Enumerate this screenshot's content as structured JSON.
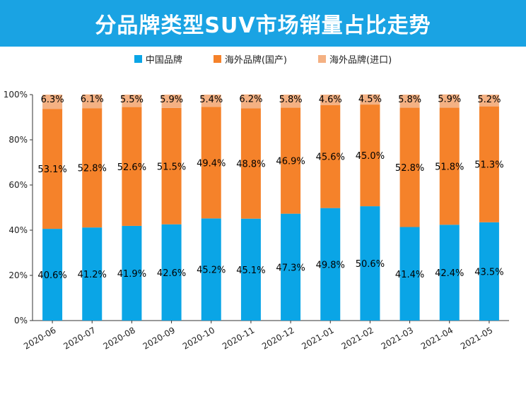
{
  "title": "分品牌类型SUV市场销量占比走势",
  "chart_data": {
    "type": "bar",
    "stacked": true,
    "categories": [
      "2020-06",
      "2020-07",
      "2020-08",
      "2020-09",
      "2020-10",
      "2020-11",
      "2020-12",
      "2021-01",
      "2021-02",
      "2021-03",
      "2021-04",
      "2021-05"
    ],
    "series": [
      {
        "name": "中国品牌",
        "color": "#0aa5e6",
        "values": [
          40.6,
          41.2,
          41.9,
          42.6,
          45.2,
          45.1,
          47.3,
          49.8,
          50.6,
          41.4,
          42.4,
          43.5
        ],
        "labels": [
          "40.6%",
          "41.2%",
          "41.9%",
          "42.6%",
          "45.2%",
          "45.1%",
          "47.3%",
          "49.8%",
          "50.6%",
          "41.4%",
          "42.4%",
          "43.5%"
        ]
      },
      {
        "name": "海外品牌(国产)",
        "color": "#f5822a",
        "values": [
          53.1,
          52.8,
          52.6,
          51.5,
          49.4,
          48.8,
          46.9,
          45.6,
          45.0,
          52.8,
          51.8,
          51.3
        ],
        "labels": [
          "53.1%",
          "52.8%",
          "52.6%",
          "51.5%",
          "49.4%",
          "48.8%",
          "46.9%",
          "45.6%",
          "45.0%",
          "52.8%",
          "51.8%",
          "51.3%"
        ]
      },
      {
        "name": "海外品牌(进口)",
        "color": "#f4b183",
        "values": [
          6.3,
          6.1,
          5.5,
          5.9,
          5.4,
          6.2,
          5.8,
          4.6,
          4.5,
          5.8,
          5.9,
          5.2
        ],
        "labels": [
          "6.3%",
          "6.1%",
          "5.5%",
          "5.9%",
          "5.4%",
          "6.2%",
          "5.8%",
          "4.6%",
          "4.5%",
          "5.8%",
          "5.9%",
          "5.2%"
        ]
      }
    ],
    "yticks": [
      "0%",
      "20%",
      "40%",
      "60%",
      "80%",
      "100%"
    ],
    "ylim": [
      0,
      100
    ],
    "legend_position": "top"
  }
}
